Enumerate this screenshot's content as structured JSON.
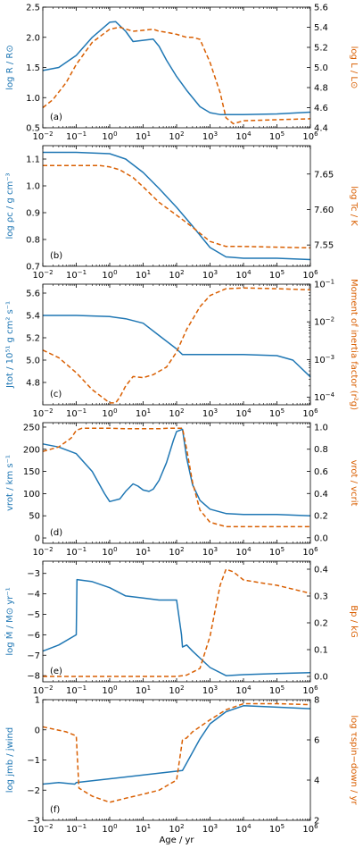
{
  "colors": {
    "blue": "#1f77b4",
    "orange": "#d95f02"
  },
  "xaxis": {
    "label": "Age / yr",
    "scale": "log",
    "range": [
      0.01,
      1000000
    ],
    "ticks": [
      {
        "base": "10",
        "exp": "−2"
      },
      {
        "base": "10",
        "exp": "−1"
      },
      {
        "base": "10",
        "exp": "0"
      },
      {
        "base": "10",
        "exp": "1"
      },
      {
        "base": "10",
        "exp": "2"
      },
      {
        "base": "10",
        "exp": "3"
      },
      {
        "base": "10",
        "exp": "4"
      },
      {
        "base": "10",
        "exp": "5"
      },
      {
        "base": "10",
        "exp": "6"
      }
    ]
  },
  "chart_data": [
    {
      "type": "line",
      "panel_label": "(a)",
      "ylabel_left": "log R / R⊙",
      "ylabel_right": "log L / L⊙",
      "left": {
        "range": [
          0.5,
          2.5
        ],
        "ticks": [
          "0.5",
          "1.0",
          "1.5",
          "2.0",
          "2.5"
        ],
        "tick_values": [
          0.5,
          1.0,
          1.5,
          2.0,
          2.5
        ]
      },
      "right": {
        "range": [
          4.4,
          5.6
        ],
        "ticks": [
          "4.4",
          "4.6",
          "4.8",
          "5.0",
          "5.2",
          "5.4",
          "5.6"
        ],
        "tick_values": [
          4.4,
          4.6,
          4.8,
          5.0,
          5.2,
          5.4,
          5.6
        ]
      },
      "series": [
        {
          "axis": "left",
          "style": "solid",
          "x": [
            0.01,
            0.03,
            0.1,
            0.3,
            1,
            1.5,
            3,
            5,
            10,
            20,
            30,
            50,
            100,
            200,
            500,
            1000,
            2000,
            3000,
            10000,
            100000,
            1000000
          ],
          "y": [
            1.45,
            1.5,
            1.7,
            2.0,
            2.25,
            2.26,
            2.1,
            1.93,
            1.95,
            1.97,
            1.85,
            1.62,
            1.35,
            1.12,
            0.85,
            0.75,
            0.72,
            0.72,
            0.72,
            0.73,
            0.76
          ]
        },
        {
          "axis": "right",
          "style": "dashed",
          "x": [
            0.01,
            0.02,
            0.05,
            0.1,
            0.3,
            1,
            2,
            5,
            10,
            20,
            30,
            50,
            100,
            200,
            300,
            500,
            1000,
            2000,
            3000,
            5000,
            10000,
            100000,
            1000000
          ],
          "y": [
            4.6,
            4.68,
            4.85,
            5.03,
            5.25,
            5.38,
            5.4,
            5.36,
            5.37,
            5.38,
            5.36,
            5.35,
            5.33,
            5.3,
            5.3,
            5.28,
            5.05,
            4.75,
            4.5,
            4.44,
            4.47,
            4.48,
            4.49
          ]
        }
      ]
    },
    {
      "type": "line",
      "panel_label": "(b)",
      "ylabel_left": "log ρc / g cm⁻³",
      "ylabel_right": "log Tc / K",
      "left": {
        "range": [
          0.7,
          1.15
        ],
        "ticks": [
          "0.7",
          "0.8",
          "0.9",
          "1.0",
          "1.1"
        ],
        "tick_values": [
          0.7,
          0.8,
          0.9,
          1.0,
          1.1
        ]
      },
      "right": {
        "range": [
          7.52,
          7.69
        ],
        "ticks": [
          "7.55",
          "7.60",
          "7.65"
        ],
        "tick_values": [
          7.55,
          7.6,
          7.65
        ]
      },
      "series": [
        {
          "axis": "left",
          "style": "solid",
          "x": [
            0.01,
            0.1,
            1,
            3,
            10,
            30,
            100,
            300,
            1000,
            3000,
            10000,
            100000,
            1000000
          ],
          "y": [
            1.125,
            1.125,
            1.12,
            1.1,
            1.05,
            0.99,
            0.92,
            0.85,
            0.77,
            0.735,
            0.73,
            0.73,
            0.725
          ]
        },
        {
          "axis": "right",
          "style": "dashed",
          "x": [
            0.01,
            0.1,
            0.5,
            1,
            2,
            5,
            10,
            30,
            100,
            300,
            1000,
            3000,
            10000,
            100000,
            1000000
          ],
          "y": [
            7.662,
            7.662,
            7.662,
            7.66,
            7.656,
            7.645,
            7.632,
            7.61,
            7.592,
            7.575,
            7.555,
            7.548,
            7.548,
            7.547,
            7.546
          ]
        }
      ]
    },
    {
      "type": "line",
      "panel_label": "(c)",
      "ylabel_left": "Jtot / 10⁵¹ g cm² s⁻¹",
      "ylabel_right": "Moment of inertia factor (r²g)",
      "left": {
        "range": [
          4.6,
          5.68
        ],
        "ticks": [
          "4.8",
          "5.0",
          "5.2",
          "5.4",
          "5.6"
        ],
        "tick_values": [
          4.8,
          5.0,
          5.2,
          5.4,
          5.6
        ]
      },
      "right": {
        "range": [
          -4.2,
          -1.0
        ],
        "scale": "log",
        "ticks": [
          {
            "base": "10",
            "exp": "−4"
          },
          {
            "base": "10",
            "exp": "−3"
          },
          {
            "base": "10",
            "exp": "−2"
          },
          {
            "base": "10",
            "exp": "−1"
          }
        ],
        "tick_values": [
          -4,
          -3,
          -2,
          -1
        ]
      },
      "series": [
        {
          "axis": "left",
          "style": "solid",
          "x": [
            0.01,
            0.1,
            1,
            3,
            10,
            30,
            100,
            150,
            1000,
            10000,
            100000,
            300000,
            1000000
          ],
          "y": [
            5.4,
            5.4,
            5.39,
            5.37,
            5.33,
            5.22,
            5.1,
            5.05,
            5.05,
            5.05,
            5.04,
            5.0,
            4.85
          ]
        },
        {
          "axis": "right",
          "style": "dashed",
          "x": [
            0.01,
            0.03,
            0.1,
            0.3,
            1,
            1.5,
            2,
            3,
            5,
            10,
            20,
            50,
            100,
            200,
            500,
            1000,
            3000,
            10000,
            100000,
            1000000
          ],
          "y": [
            -2.75,
            -2.95,
            -3.35,
            -3.8,
            -4.15,
            -4.15,
            -4.0,
            -3.7,
            -3.45,
            -3.48,
            -3.4,
            -3.2,
            -2.8,
            -2.2,
            -1.6,
            -1.3,
            -1.12,
            -1.1,
            -1.12,
            -1.15
          ]
        }
      ]
    },
    {
      "type": "line",
      "panel_label": "(d)",
      "ylabel_left": "vrot / km s⁻¹",
      "ylabel_right": "vrot / vcrit",
      "left": {
        "range": [
          -12,
          260
        ],
        "ticks": [
          "0",
          "50",
          "100",
          "150",
          "200",
          "250"
        ],
        "tick_values": [
          0,
          50,
          100,
          150,
          200,
          250
        ]
      },
      "right": {
        "range": [
          -0.05,
          1.04
        ],
        "ticks": [
          "0.0",
          "0.2",
          "0.4",
          "0.6",
          "0.8",
          "1.0"
        ],
        "tick_values": [
          0,
          0.2,
          0.4,
          0.6,
          0.8,
          1.0
        ]
      },
      "series": [
        {
          "axis": "left",
          "style": "solid",
          "x": [
            0.01,
            0.03,
            0.1,
            0.3,
            0.7,
            1,
            2,
            3,
            5,
            7,
            10,
            15,
            20,
            30,
            50,
            80,
            100,
            150,
            200,
            300,
            500,
            1000,
            3000,
            10000,
            100000,
            1000000
          ],
          "y": [
            212,
            205,
            190,
            150,
            100,
            82,
            88,
            105,
            122,
            117,
            108,
            105,
            110,
            130,
            170,
            220,
            240,
            245,
            180,
            120,
            85,
            65,
            55,
            53,
            53,
            50
          ]
        },
        {
          "axis": "right",
          "style": "dashed",
          "x": [
            0.01,
            0.03,
            0.07,
            0.1,
            0.15,
            0.3,
            1,
            3,
            10,
            30,
            60,
            100,
            150,
            200,
            300,
            500,
            1000,
            3000,
            10000,
            100000,
            1000000
          ],
          "y": [
            0.78,
            0.82,
            0.9,
            0.97,
            0.99,
            0.99,
            0.99,
            0.985,
            0.985,
            0.985,
            0.99,
            0.99,
            0.99,
            0.8,
            0.5,
            0.25,
            0.14,
            0.1,
            0.1,
            0.1,
            0.1
          ]
        }
      ]
    },
    {
      "type": "line",
      "panel_label": "(e)",
      "ylabel_left": "log Ṁ / M⊙ yr⁻¹",
      "ylabel_right": "Bp / kG",
      "left": {
        "range": [
          -8.3,
          -2.4
        ],
        "ticks": [
          "−8",
          "−7",
          "−6",
          "−5",
          "−4",
          "−3"
        ],
        "tick_values": [
          -8,
          -7,
          -6,
          -5,
          -4,
          -3
        ]
      },
      "right": {
        "range": [
          -0.02,
          0.43
        ],
        "ticks": [
          "0.0",
          "0.1",
          "0.2",
          "0.3",
          "0.4"
        ],
        "tick_values": [
          0,
          0.1,
          0.2,
          0.3,
          0.4
        ]
      },
      "series": [
        {
          "axis": "left",
          "style": "solid",
          "x": [
            0.01,
            0.03,
            0.1,
            0.105,
            0.3,
            1,
            3,
            10,
            30,
            100,
            140,
            150,
            200,
            300,
            1000,
            3000,
            10000,
            100000,
            1000000
          ],
          "y": [
            -6.8,
            -6.5,
            -6.0,
            -3.3,
            -3.4,
            -3.7,
            -4.1,
            -4.2,
            -4.3,
            -4.3,
            -6.0,
            -6.6,
            -6.5,
            -6.8,
            -7.6,
            -8.0,
            -7.95,
            -7.9,
            -7.85
          ]
        },
        {
          "axis": "right",
          "style": "dashed",
          "x": [
            0.01,
            1,
            10,
            100,
            200,
            500,
            1000,
            2000,
            3000,
            5000,
            10000,
            30000,
            100000,
            1000000
          ],
          "y": [
            0.0,
            0.0,
            0.0,
            0.0,
            0.005,
            0.03,
            0.15,
            0.34,
            0.4,
            0.39,
            0.36,
            0.35,
            0.34,
            0.31
          ]
        }
      ]
    },
    {
      "type": "line",
      "panel_label": "(f)",
      "ylabel_left": "log jmb / jwind",
      "ylabel_right": "log τspin−down / yr",
      "left": {
        "range": [
          -3.0,
          1.0
        ],
        "ticks": [
          "−3",
          "−2",
          "−1",
          "0",
          "1"
        ],
        "tick_values": [
          -3,
          -2,
          -1,
          0,
          1
        ]
      },
      "right": {
        "range": [
          2.0,
          8.0
        ],
        "ticks": [
          "2",
          "4",
          "6",
          "8"
        ],
        "tick_values": [
          2,
          4,
          6,
          8
        ]
      },
      "series": [
        {
          "axis": "left",
          "style": "solid",
          "x": [
            0.01,
            0.03,
            0.09,
            0.1,
            150,
            200,
            500,
            1000,
            3000,
            10000,
            100000,
            1000000
          ],
          "y": [
            -1.8,
            -1.75,
            -1.8,
            -1.75,
            -1.35,
            -1.1,
            -0.3,
            0.2,
            0.6,
            0.8,
            0.75,
            0.7
          ]
        },
        {
          "axis": "right",
          "style": "dashed",
          "x": [
            0.01,
            0.05,
            0.1,
            0.12,
            0.3,
            1,
            3,
            10,
            30,
            100,
            150,
            200,
            300,
            1000,
            3000,
            10000,
            100000,
            1000000
          ],
          "y": [
            6.65,
            6.4,
            6.2,
            3.6,
            3.2,
            2.9,
            3.1,
            3.3,
            3.5,
            4.0,
            6.0,
            6.1,
            6.4,
            7.0,
            7.5,
            7.8,
            7.8,
            7.75
          ]
        }
      ]
    }
  ]
}
